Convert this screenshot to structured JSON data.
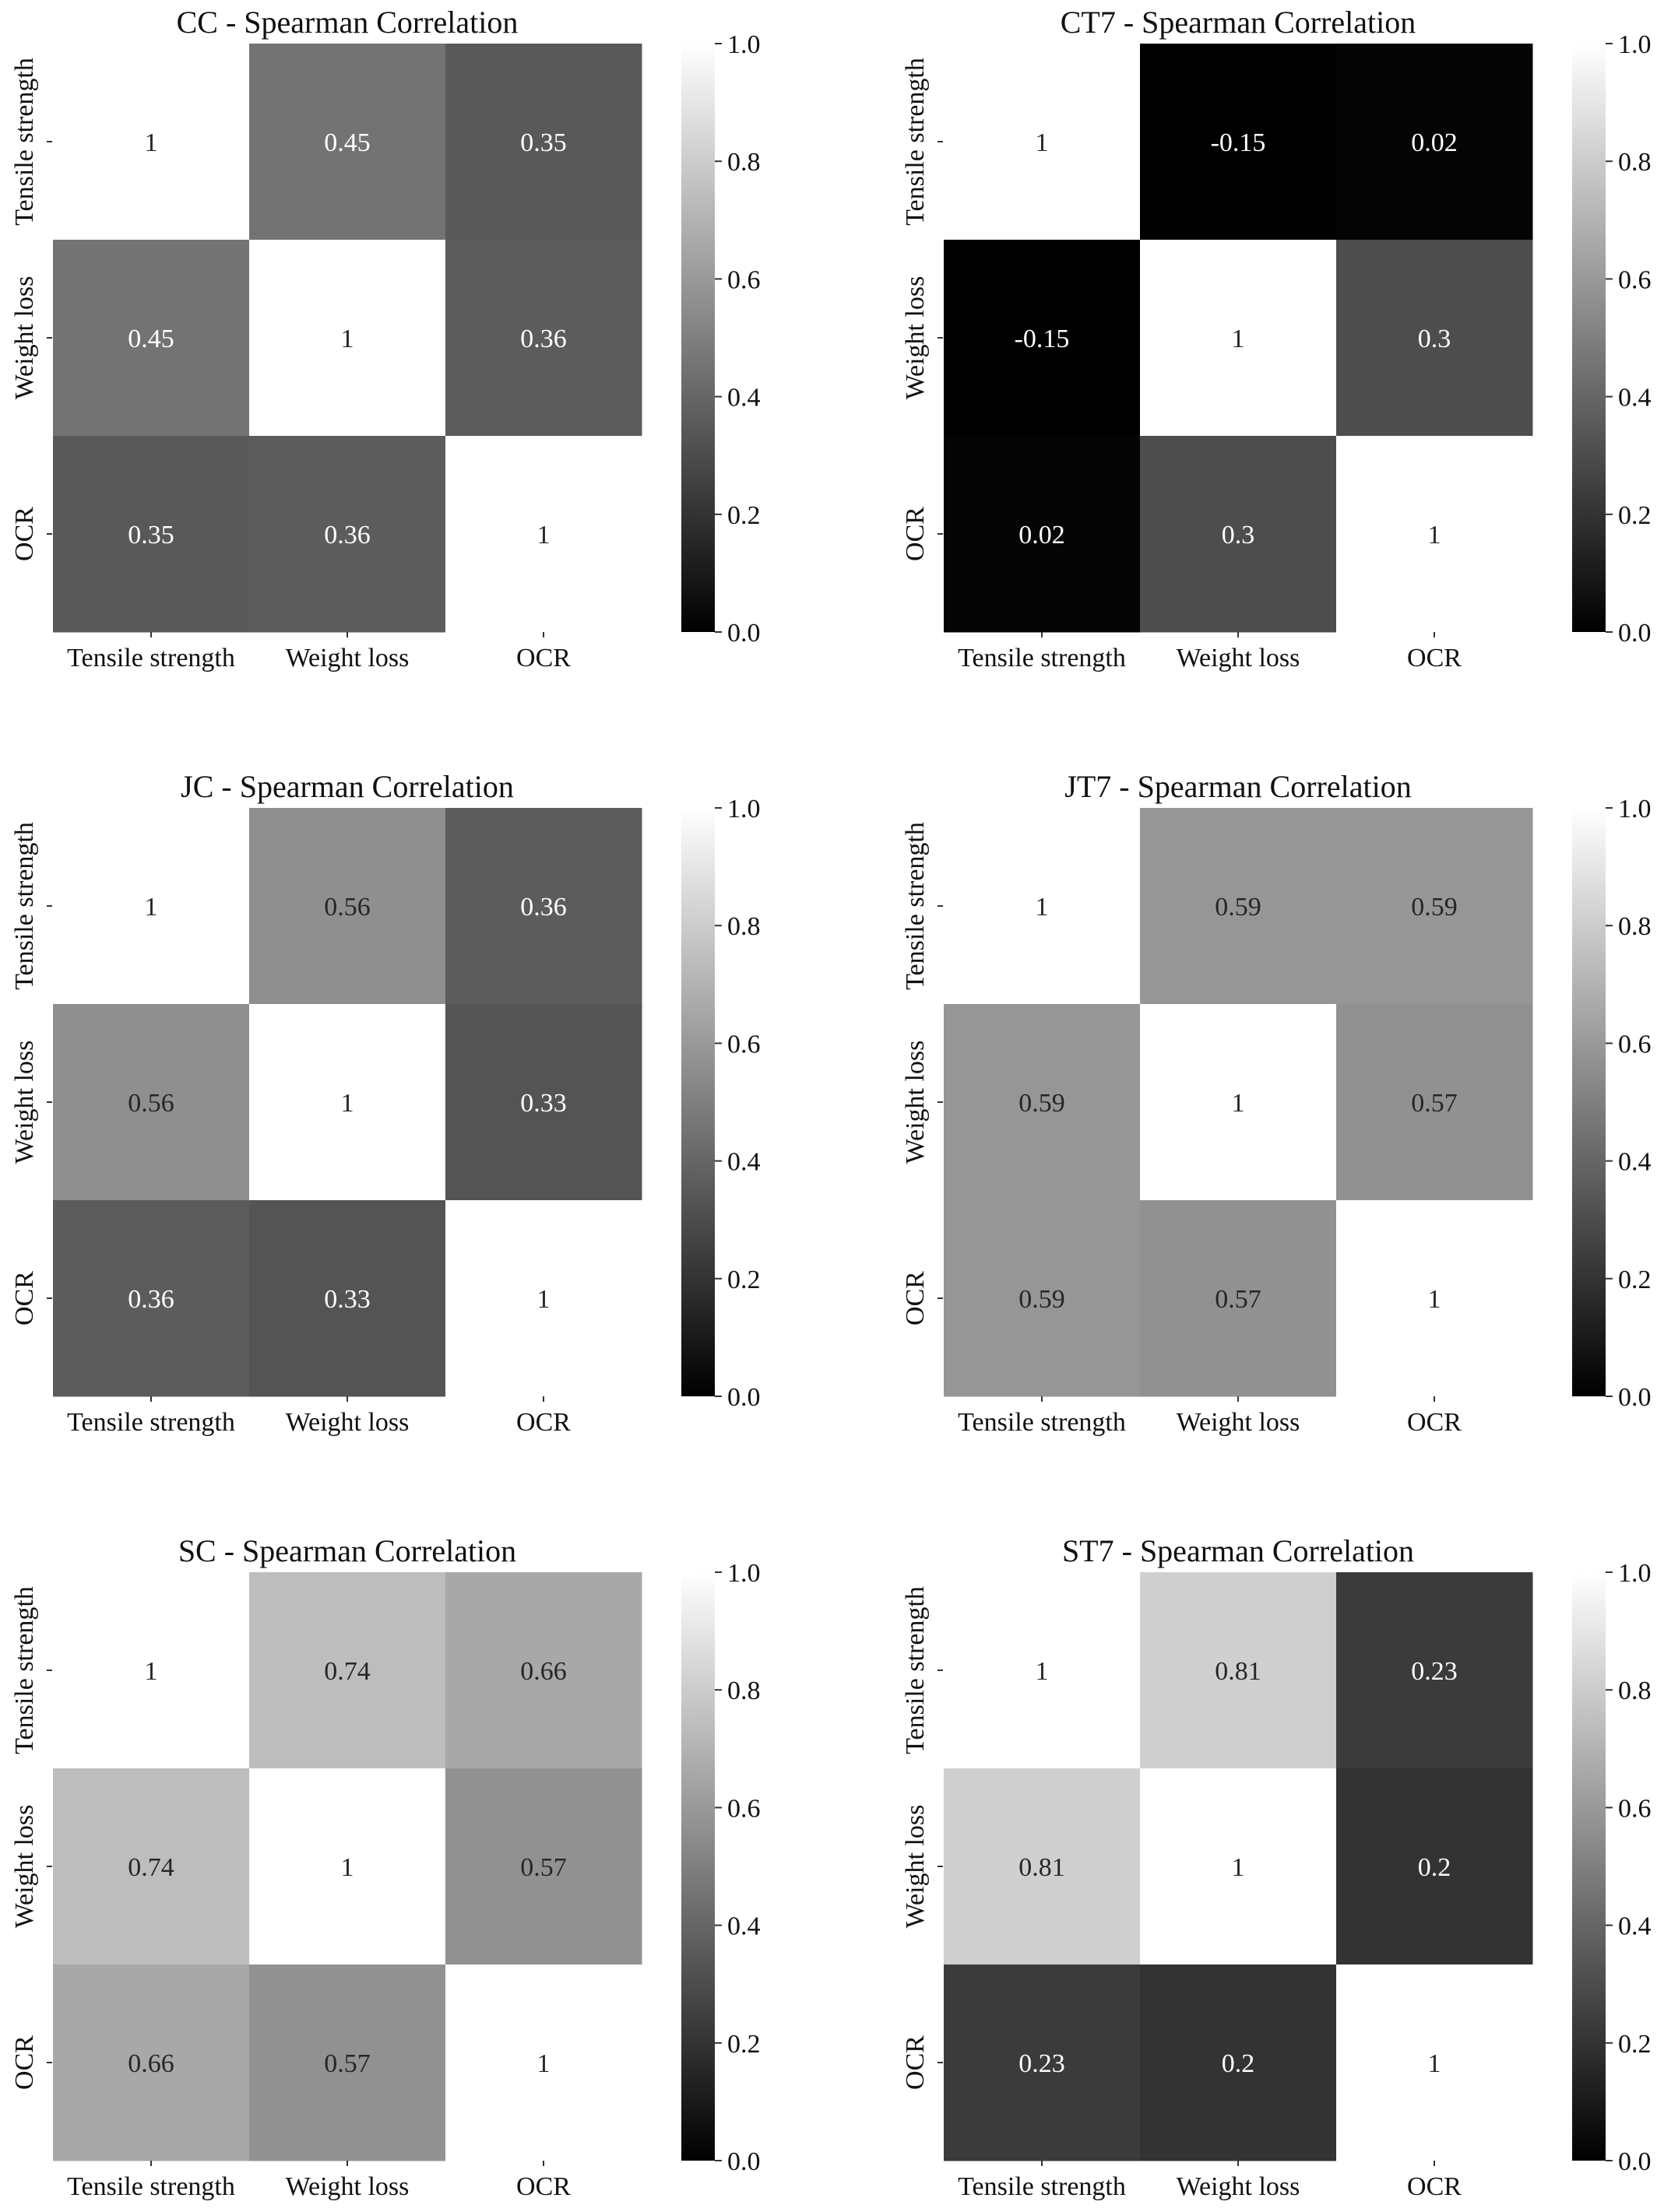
{
  "chart_data": [
    {
      "type": "heatmap",
      "title": "CC - Spearman Correlation",
      "x_labels": [
        "Tensile strength",
        "Weight loss",
        "OCR"
      ],
      "y_labels": [
        "Tensile strength",
        "Weight loss",
        "OCR"
      ],
      "values": [
        [
          1,
          0.45,
          0.35
        ],
        [
          0.45,
          1,
          0.36
        ],
        [
          0.35,
          0.36,
          1
        ]
      ],
      "value_labels": [
        [
          "1",
          "0.45",
          "0.35"
        ],
        [
          "0.45",
          "1",
          "0.36"
        ],
        [
          "0.35",
          "0.36",
          "1"
        ]
      ],
      "colorbar": {
        "range": [
          0.0,
          1.0
        ],
        "ticks": [
          "0.0",
          "0.2",
          "0.4",
          "0.6",
          "0.8",
          "1.0"
        ],
        "colormap": "grayscale"
      }
    },
    {
      "type": "heatmap",
      "title": "CT7 - Spearman Correlation",
      "x_labels": [
        "Tensile strength",
        "Weight loss",
        "OCR"
      ],
      "y_labels": [
        "Tensile strength",
        "Weight loss",
        "OCR"
      ],
      "values": [
        [
          1,
          -0.15,
          0.02
        ],
        [
          -0.15,
          1,
          0.3
        ],
        [
          0.02,
          0.3,
          1
        ]
      ],
      "value_labels": [
        [
          "1",
          "-0.15",
          "0.02"
        ],
        [
          "-0.15",
          "1",
          "0.3"
        ],
        [
          "0.02",
          "0.3",
          "1"
        ]
      ],
      "colorbar": {
        "range": [
          0.0,
          1.0
        ],
        "ticks": [
          "0.0",
          "0.2",
          "0.4",
          "0.6",
          "0.8",
          "1.0"
        ],
        "colormap": "grayscale"
      }
    },
    {
      "type": "heatmap",
      "title": "JC - Spearman Correlation",
      "x_labels": [
        "Tensile strength",
        "Weight loss",
        "OCR"
      ],
      "y_labels": [
        "Tensile strength",
        "Weight loss",
        "OCR"
      ],
      "values": [
        [
          1,
          0.56,
          0.36
        ],
        [
          0.56,
          1,
          0.33
        ],
        [
          0.36,
          0.33,
          1
        ]
      ],
      "value_labels": [
        [
          "1",
          "0.56",
          "0.36"
        ],
        [
          "0.56",
          "1",
          "0.33"
        ],
        [
          "0.36",
          "0.33",
          "1"
        ]
      ],
      "colorbar": {
        "range": [
          0.0,
          1.0
        ],
        "ticks": [
          "0.0",
          "0.2",
          "0.4",
          "0.6",
          "0.8",
          "1.0"
        ],
        "colormap": "grayscale"
      }
    },
    {
      "type": "heatmap",
      "title": "JT7 - Spearman Correlation",
      "x_labels": [
        "Tensile strength",
        "Weight loss",
        "OCR"
      ],
      "y_labels": [
        "Tensile strength",
        "Weight loss",
        "OCR"
      ],
      "values": [
        [
          1,
          0.59,
          0.59
        ],
        [
          0.59,
          1,
          0.57
        ],
        [
          0.59,
          0.57,
          1
        ]
      ],
      "value_labels": [
        [
          "1",
          "0.59",
          "0.59"
        ],
        [
          "0.59",
          "1",
          "0.57"
        ],
        [
          "0.59",
          "0.57",
          "1"
        ]
      ],
      "colorbar": {
        "range": [
          0.0,
          1.0
        ],
        "ticks": [
          "0.0",
          "0.2",
          "0.4",
          "0.6",
          "0.8",
          "1.0"
        ],
        "colormap": "grayscale"
      }
    },
    {
      "type": "heatmap",
      "title": "SC - Spearman Correlation",
      "x_labels": [
        "Tensile strength",
        "Weight loss",
        "OCR"
      ],
      "y_labels": [
        "Tensile strength",
        "Weight loss",
        "OCR"
      ],
      "values": [
        [
          1,
          0.74,
          0.66
        ],
        [
          0.74,
          1,
          0.57
        ],
        [
          0.66,
          0.57,
          1
        ]
      ],
      "value_labels": [
        [
          "1",
          "0.74",
          "0.66"
        ],
        [
          "0.74",
          "1",
          "0.57"
        ],
        [
          "0.66",
          "0.57",
          "1"
        ]
      ],
      "colorbar": {
        "range": [
          0.0,
          1.0
        ],
        "ticks": [
          "0.0",
          "0.2",
          "0.4",
          "0.6",
          "0.8",
          "1.0"
        ],
        "colormap": "grayscale"
      }
    },
    {
      "type": "heatmap",
      "title": "ST7 - Spearman Correlation",
      "x_labels": [
        "Tensile strength",
        "Weight loss",
        "OCR"
      ],
      "y_labels": [
        "Tensile strength",
        "Weight loss",
        "OCR"
      ],
      "values": [
        [
          1,
          0.81,
          0.23
        ],
        [
          0.81,
          1,
          0.2
        ],
        [
          0.23,
          0.2,
          1
        ]
      ],
      "value_labels": [
        [
          "1",
          "0.81",
          "0.23"
        ],
        [
          "0.81",
          "1",
          "0.2"
        ],
        [
          "0.23",
          "0.2",
          "1"
        ]
      ],
      "colorbar": {
        "range": [
          0.0,
          1.0
        ],
        "ticks": [
          "0.0",
          "0.2",
          "0.4",
          "0.6",
          "0.8",
          "1.0"
        ],
        "colormap": "grayscale"
      }
    }
  ]
}
